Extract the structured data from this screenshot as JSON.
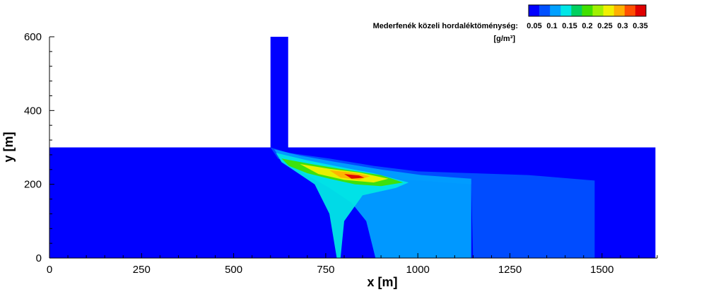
{
  "chart_data": {
    "type": "heatmap",
    "xlabel": "x [m]",
    "ylabel": "y [m]",
    "xlim": [
      0,
      1650
    ],
    "ylim": [
      0,
      600
    ],
    "x_ticks": [
      0,
      250,
      500,
      750,
      1000,
      1250,
      1500
    ],
    "y_ticks": [
      0,
      200,
      400,
      600
    ],
    "colorbar": {
      "label": "Mederfenék közeli hordaléktöménység:",
      "unit": "[g/m³]",
      "tick_labels": [
        "0.05",
        "0.1",
        "0.15",
        "0.2",
        "0.25",
        "0.3",
        "0.35"
      ],
      "colors": [
        "#0000ff",
        "#0050ff",
        "#00a0ff",
        "#00e6e6",
        "#00d060",
        "#40e000",
        "#a0f000",
        "#f0f000",
        "#ffb000",
        "#ff5000",
        "#e00000"
      ]
    },
    "domain": {
      "main_channel": {
        "x": [
          0,
          1645
        ],
        "y": [
          0,
          300
        ]
      },
      "tributary": {
        "x": [
          600,
          648
        ],
        "y": [
          300,
          600
        ]
      }
    },
    "concentration_regions": [
      {
        "level": "0.05-0.1",
        "points": [
          [
            600,
            300
          ],
          [
            650,
            285
          ],
          [
            760,
            270
          ],
          [
            880,
            250
          ],
          [
            1000,
            235
          ],
          [
            1150,
            230
          ],
          [
            1300,
            225
          ],
          [
            1480,
            210
          ],
          [
            1480,
            0
          ],
          [
            1150,
            0
          ],
          [
            1145,
            200
          ],
          [
            1000,
            210
          ],
          [
            900,
            215
          ],
          [
            800,
            225
          ],
          [
            700,
            240
          ],
          [
            620,
            270
          ]
        ]
      },
      {
        "level": "0.1-0.15",
        "points": [
          [
            610,
            295
          ],
          [
            680,
            278
          ],
          [
            780,
            260
          ],
          [
            900,
            240
          ],
          [
            1010,
            225
          ],
          [
            1145,
            215
          ],
          [
            1145,
            0
          ],
          [
            885,
            0
          ],
          [
            860,
            100
          ],
          [
            820,
            150
          ],
          [
            760,
            190
          ],
          [
            690,
            230
          ],
          [
            630,
            265
          ]
        ]
      },
      {
        "level": "0.15-0.2",
        "points": [
          [
            615,
            285
          ],
          [
            700,
            265
          ],
          [
            800,
            245
          ],
          [
            880,
            230
          ],
          [
            975,
            205
          ],
          [
            940,
            190
          ],
          [
            850,
            170
          ],
          [
            800,
            100
          ],
          [
            790,
            0
          ],
          [
            780,
            0
          ],
          [
            760,
            120
          ],
          [
            720,
            200
          ],
          [
            660,
            240
          ],
          [
            630,
            260
          ]
        ]
      },
      {
        "level": "0.2-0.25",
        "points": [
          [
            630,
            270
          ],
          [
            710,
            255
          ],
          [
            800,
            240
          ],
          [
            900,
            225
          ],
          [
            960,
            205
          ],
          [
            900,
            195
          ],
          [
            830,
            200
          ],
          [
            760,
            215
          ],
          [
            700,
            230
          ],
          [
            650,
            250
          ]
        ]
      },
      {
        "level": "0.25-0.3",
        "points": [
          [
            680,
            255
          ],
          [
            760,
            242
          ],
          [
            840,
            232
          ],
          [
            920,
            215
          ],
          [
            880,
            205
          ],
          [
            800,
            212
          ],
          [
            730,
            228
          ]
        ]
      },
      {
        "level": "0.3-0.35",
        "points": [
          [
            760,
            238
          ],
          [
            820,
            232
          ],
          [
            870,
            222
          ],
          [
            840,
            212
          ],
          [
            790,
            218
          ]
        ]
      },
      {
        "level": ">0.35",
        "points": [
          [
            800,
            228
          ],
          [
            840,
            224
          ],
          [
            855,
            218
          ],
          [
            820,
            215
          ]
        ]
      }
    ]
  }
}
